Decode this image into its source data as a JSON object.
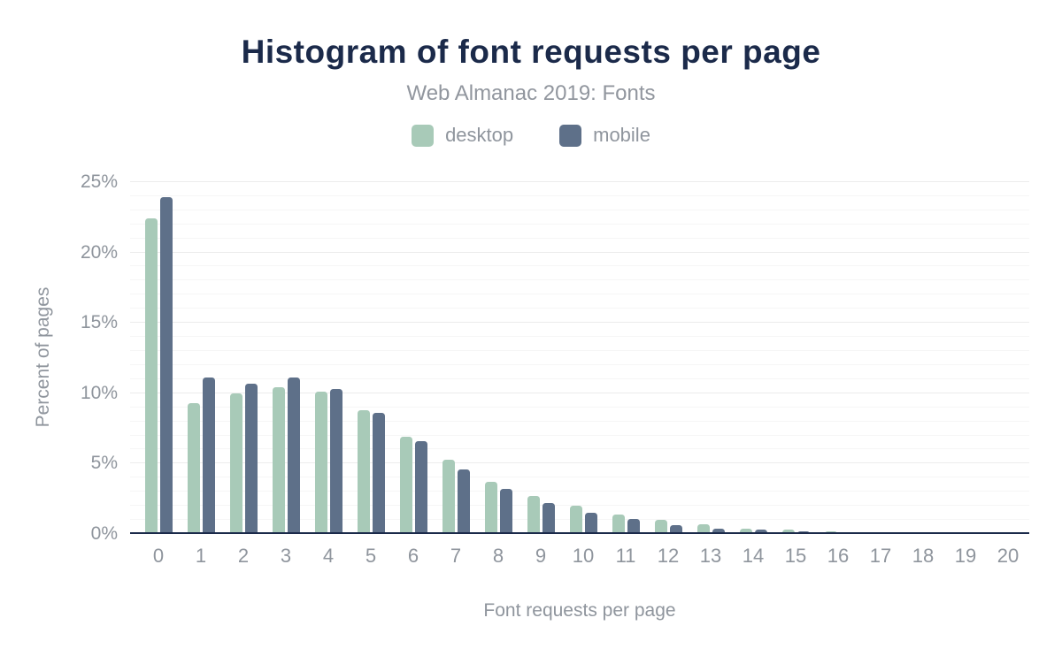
{
  "title": "Histogram of font requests per page",
  "subtitle": "Web Almanac 2019: Fonts",
  "legend": {
    "desktop_label": "desktop",
    "mobile_label": "mobile"
  },
  "colors": {
    "desktop": "#a8cab8",
    "mobile": "#5e7089",
    "title_text": "#1b2a4a",
    "gray_text": "#8f959d",
    "axis_line": "#1b2a4a",
    "gridline_minor": "#f6f6f6",
    "gridline_major": "#ececec",
    "background": "#ffffff"
  },
  "chart_data": {
    "type": "bar",
    "title": "Histogram of font requests per page",
    "subtitle": "Web Almanac 2019: Fonts",
    "xlabel": "Font requests per page",
    "ylabel": "Percent of pages",
    "categories": [
      "0",
      "1",
      "2",
      "3",
      "4",
      "5",
      "6",
      "7",
      "8",
      "9",
      "10",
      "11",
      "12",
      "13",
      "14",
      "15",
      "16",
      "17",
      "18",
      "19",
      "20"
    ],
    "series": [
      {
        "name": "desktop",
        "color": "#a8cab8",
        "values": [
          22.4,
          9.3,
          10.0,
          10.4,
          10.1,
          8.8,
          6.9,
          5.3,
          3.7,
          2.7,
          2.0,
          1.4,
          1.0,
          0.7,
          0.4,
          0.3,
          0.2,
          0.1,
          0.1,
          0.1,
          0.1
        ]
      },
      {
        "name": "mobile",
        "color": "#5e7089",
        "values": [
          23.9,
          11.1,
          10.7,
          11.1,
          10.3,
          8.6,
          6.6,
          4.6,
          3.2,
          2.2,
          1.5,
          1.1,
          0.6,
          0.4,
          0.3,
          0.2,
          0.15,
          0.15,
          0.1,
          0.05,
          0.05
        ]
      }
    ],
    "y_ticks": [
      0,
      5,
      10,
      15,
      20,
      25
    ],
    "y_tick_labels": [
      "0%",
      "5%",
      "10%",
      "15%",
      "20%",
      "25%"
    ],
    "ylim": [
      0,
      26
    ],
    "grid": {
      "minor_step": 1,
      "major_step": 5,
      "visible": true
    },
    "legend_position": "top"
  }
}
